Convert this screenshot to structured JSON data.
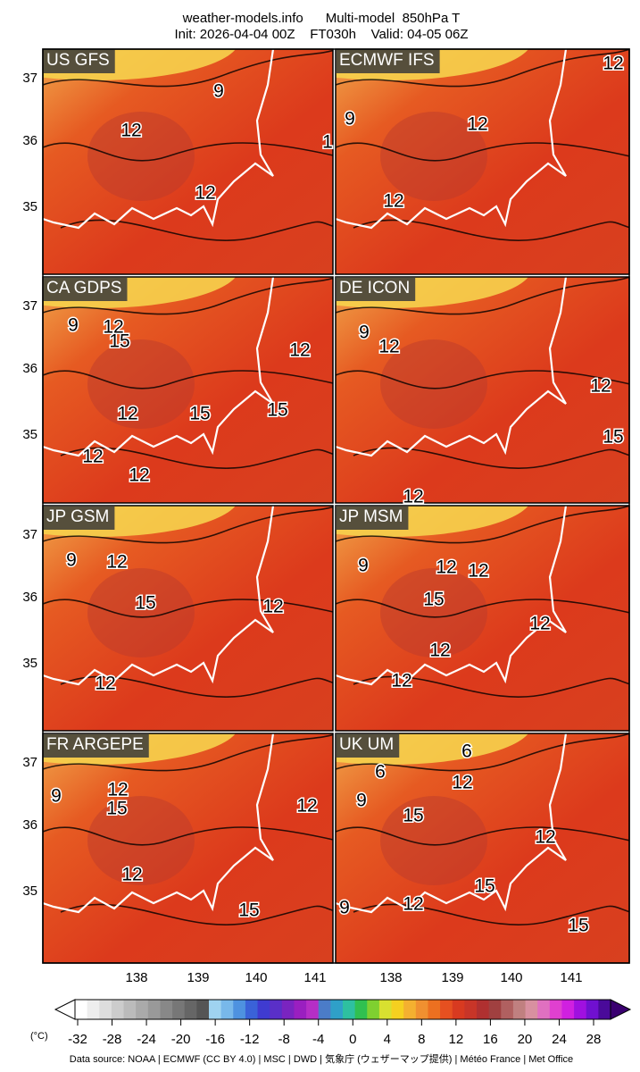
{
  "header": {
    "title": "weather-models.info      Multi-model  850hPa T",
    "subtitle": "Init: 2026-04-04 00Z    FT030h    Valid: 04-05 06Z"
  },
  "panels": [
    {
      "label": "US GFS",
      "contour_labels": [
        "9",
        "12",
        "12",
        "1"
      ]
    },
    {
      "label": "ECMWF IFS",
      "contour_labels": [
        "12",
        "9",
        "12",
        "12"
      ]
    },
    {
      "label": "CA GDPS",
      "contour_labels": [
        "9",
        "12",
        "15",
        "12",
        "12",
        "15",
        "15",
        "12",
        "12"
      ]
    },
    {
      "label": "DE ICON",
      "contour_labels": [
        "9",
        "12",
        "12",
        "15",
        "12"
      ]
    },
    {
      "label": "JP GSM",
      "contour_labels": [
        "9",
        "12",
        "15",
        "12",
        "12"
      ]
    },
    {
      "label": "JP MSM",
      "contour_labels": [
        "9",
        "12",
        "12",
        "15",
        "12",
        "12",
        "12"
      ]
    },
    {
      "label": "FR ARGEPE",
      "contour_labels": [
        "12",
        "15",
        "9",
        "12",
        "12",
        "15"
      ]
    },
    {
      "label": "UK UM",
      "contour_labels": [
        "6",
        "6",
        "12",
        "9",
        "15",
        "12",
        "15",
        "9",
        "12",
        "15"
      ]
    }
  ],
  "lat_ticks": [
    "37",
    "36",
    "35"
  ],
  "lon_ticks": [
    "138",
    "139",
    "140",
    "141"
  ],
  "colorbar": {
    "unit": "(°C)",
    "ticks": [
      "-32",
      "-28",
      "-24",
      "-20",
      "-16",
      "-12",
      "-8",
      "-4",
      "0",
      "4",
      "8",
      "12",
      "16",
      "20",
      "24",
      "28"
    ]
  },
  "source": "Data source: NOAA | ECMWF (CC BY 4.0) | MSC | DWD | 気象庁 (ウェザーマップ提供) | Météo France | Met Office"
}
